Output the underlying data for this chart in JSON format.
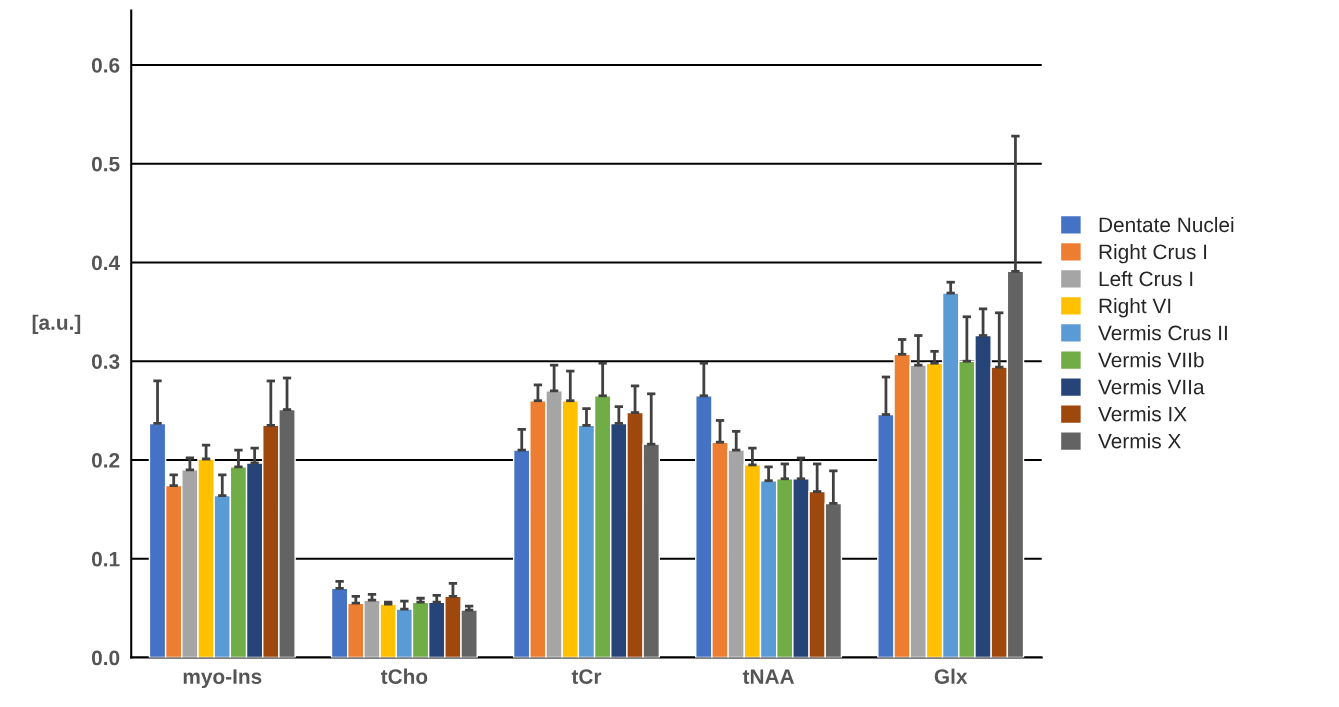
{
  "chart_data": {
    "type": "bar",
    "ylabel": "[a.u.]",
    "categories": [
      "myo-Ins",
      "tCho",
      "tCr",
      "tNAA",
      "Glx"
    ],
    "series": [
      {
        "name": "Dentate Nuclei",
        "color": "#4472c4",
        "values": [
          0.237,
          0.07,
          0.21,
          0.265,
          0.246
        ],
        "errors": [
          [
            0.237,
            0.28
          ],
          [
            0.07,
            0.077
          ],
          [
            0.21,
            0.231
          ],
          [
            0.265,
            0.298
          ],
          [
            0.246,
            0.284
          ]
        ]
      },
      {
        "name": "Right Crus I",
        "color": "#ed7d31",
        "values": [
          0.174,
          0.055,
          0.26,
          0.218,
          0.307
        ],
        "errors": [
          [
            0.174,
            0.185
          ],
          [
            0.055,
            0.062
          ],
          [
            0.26,
            0.276
          ],
          [
            0.218,
            0.24
          ],
          [
            0.307,
            0.322
          ]
        ]
      },
      {
        "name": "Left Crus I",
        "color": "#a5a5a5",
        "values": [
          0.19,
          0.058,
          0.27,
          0.21,
          0.296
        ],
        "errors": [
          [
            0.19,
            0.202
          ],
          [
            0.058,
            0.064
          ],
          [
            0.27,
            0.296
          ],
          [
            0.21,
            0.229
          ],
          [
            0.296,
            0.326
          ]
        ]
      },
      {
        "name": "Right VI",
        "color": "#ffc000",
        "values": [
          0.201,
          0.054,
          0.26,
          0.195,
          0.298
        ],
        "errors": [
          [
            0.201,
            0.215
          ],
          [
            0.054,
            0.056
          ],
          [
            0.26,
            0.29
          ],
          [
            0.195,
            0.212
          ],
          [
            0.298,
            0.31
          ]
        ]
      },
      {
        "name": "Vermis Crus II",
        "color": "#5b9bd5",
        "values": [
          0.164,
          0.049,
          0.235,
          0.179,
          0.369
        ],
        "errors": [
          [
            0.164,
            0.185
          ],
          [
            0.049,
            0.057
          ],
          [
            0.235,
            0.252
          ],
          [
            0.179,
            0.193
          ],
          [
            0.369,
            0.38
          ]
        ]
      },
      {
        "name": "Vermis VIIb",
        "color": "#70ad47",
        "values": [
          0.193,
          0.056,
          0.265,
          0.181,
          0.3
        ],
        "errors": [
          [
            0.193,
            0.21
          ],
          [
            0.056,
            0.06
          ],
          [
            0.265,
            0.298
          ],
          [
            0.181,
            0.196
          ],
          [
            0.3,
            0.345
          ]
        ]
      },
      {
        "name": "Vermis VIIa",
        "color": "#264478",
        "values": [
          0.197,
          0.056,
          0.237,
          0.181,
          0.326
        ],
        "errors": [
          [
            0.197,
            0.212
          ],
          [
            0.056,
            0.063
          ],
          [
            0.237,
            0.254
          ],
          [
            0.181,
            0.202
          ],
          [
            0.326,
            0.353
          ]
        ]
      },
      {
        "name": "Vermis IX",
        "color": "#9e480e",
        "values": [
          0.235,
          0.062,
          0.248,
          0.168,
          0.294
        ],
        "errors": [
          [
            0.235,
            0.28
          ],
          [
            0.062,
            0.075
          ],
          [
            0.248,
            0.275
          ],
          [
            0.168,
            0.196
          ],
          [
            0.294,
            0.349
          ]
        ]
      },
      {
        "name": "Vermis X",
        "color": "#636363",
        "values": [
          0.251,
          0.048,
          0.216,
          0.156,
          0.391
        ],
        "errors": [
          [
            0.251,
            0.283
          ],
          [
            0.048,
            0.052
          ],
          [
            0.216,
            0.267
          ],
          [
            0.156,
            0.189
          ],
          [
            0.391,
            0.528
          ]
        ]
      }
    ],
    "ylim": [
      0,
      0.655
    ],
    "yticks": [
      {
        "value": 0,
        "label": "0.0"
      },
      0.1,
      0.2,
      0.3,
      0.4,
      0.5,
      0.6
    ],
    "grid": "y",
    "legend": "right"
  }
}
